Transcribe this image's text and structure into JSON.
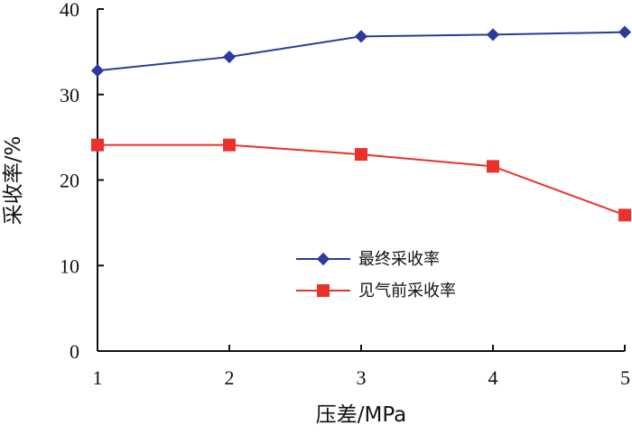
{
  "chart_data": {
    "type": "line",
    "xlabel": "压差/MPa",
    "ylabel": "采收率/%",
    "x": [
      1,
      2,
      3,
      4,
      5
    ],
    "xlim": [
      1,
      5
    ],
    "ylim": [
      0,
      40
    ],
    "xticks": [
      "1",
      "2",
      "3",
      "4",
      "5"
    ],
    "yticks": [
      "0",
      "10",
      "20",
      "30",
      "40"
    ],
    "grid": false,
    "legend_position": "center-right",
    "series": [
      {
        "name": "最终采收率",
        "values": [
          32.8,
          34.4,
          36.8,
          37.0,
          37.3
        ],
        "color": "#2b3a9c",
        "marker": "diamond"
      },
      {
        "name": "见气前采收率",
        "values": [
          24.1,
          24.1,
          23.0,
          21.6,
          15.9
        ],
        "color": "#e8322b",
        "marker": "square"
      }
    ]
  }
}
